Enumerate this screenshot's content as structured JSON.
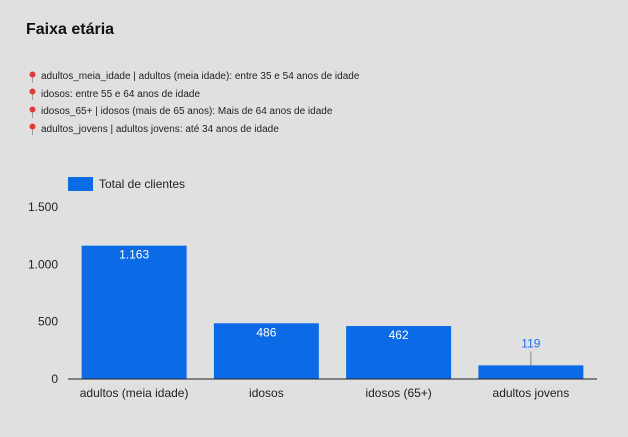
{
  "title": "Faixa etária",
  "notes": [
    {
      "text": "adultos_meia_idade | adultos (meia idade): entre 35 e 54 anos de idade",
      "icon": "map-pin-icon"
    },
    {
      "text": "idosos: entre 55 e 64 anos de idade",
      "icon": "map-pin-icon"
    },
    {
      "text": "idosos_65+ | idosos (mais de 65 anos): Mais de 64 anos de idade",
      "icon": "map-pin-icon"
    },
    {
      "text": "adultos_jovens | adultos jovens: até 34 anos de idade",
      "icon": "map-pin-icon"
    }
  ],
  "colors": {
    "bar": "#0b6be6",
    "label_inside": "#ffffff",
    "label_outside": "#1a73e8",
    "pin": "#e53935",
    "axis": "#222222"
  },
  "chart_data": {
    "type": "bar",
    "categories": [
      "adultos (meia idade)",
      "idosos",
      "idosos (65+)",
      "adultos jovens"
    ],
    "series": [
      {
        "name": "Total de clientes",
        "values": [
          1163,
          486,
          462,
          119
        ]
      }
    ],
    "data_labels": [
      "1.163",
      "486",
      "462",
      "119"
    ],
    "yticks": [
      {
        "value": 0,
        "label": "0"
      },
      {
        "value": 500,
        "label": "500"
      },
      {
        "value": 1000,
        "label": "1.000"
      },
      {
        "value": 1500,
        "label": "1.500"
      }
    ],
    "ylim": [
      0,
      1500
    ],
    "grid": false,
    "legend": "top-left"
  }
}
